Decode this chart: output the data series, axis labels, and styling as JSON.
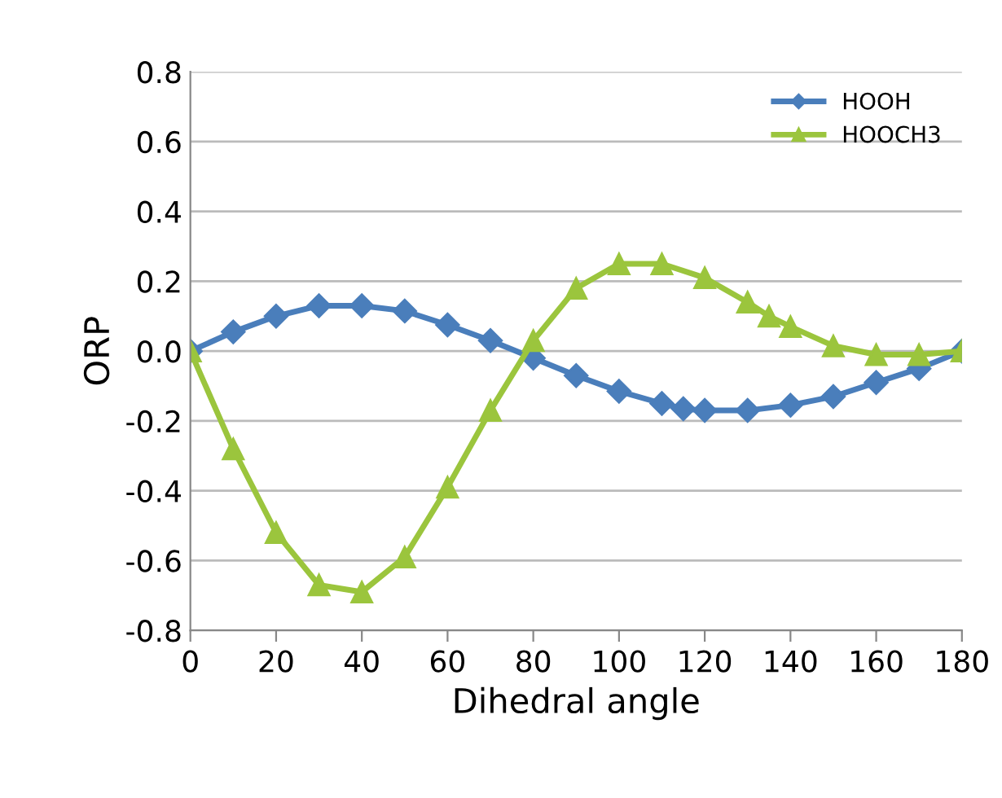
{
  "chart_data": {
    "type": "line",
    "xlabel": "Dihedral angle",
    "ylabel": "ORP",
    "xlim": [
      0,
      180
    ],
    "xticks": [
      0,
      20,
      40,
      60,
      80,
      100,
      120,
      140,
      160,
      180
    ],
    "ylim": [
      -0.8,
      0.8
    ],
    "yticks": [
      -0.8,
      -0.6,
      -0.4,
      -0.2,
      {
        "value": 0,
        "label": "0.0"
      },
      0.2,
      0.4,
      0.6,
      0.8
    ],
    "grid": "y",
    "legend": "top right",
    "series": [
      {
        "name": "HOOH",
        "color": "#4a7ebb",
        "marker": "diamond",
        "x": [
          0,
          10,
          20,
          30,
          40,
          50,
          60,
          70,
          80,
          90,
          100,
          110,
          115,
          120,
          130,
          140,
          150,
          160,
          170,
          180
        ],
        "values": [
          0,
          0.055,
          0.1,
          0.13,
          0.13,
          0.115,
          0.075,
          0.03,
          -0.02,
          -0.07,
          -0.115,
          -0.15,
          -0.165,
          -0.17,
          -0.17,
          -0.155,
          -0.13,
          -0.09,
          -0.05,
          0
        ]
      },
      {
        "name": "HOOCH3",
        "color": "#9bc53d",
        "marker": "triangle",
        "x": [
          0,
          10,
          20,
          30,
          40,
          50,
          60,
          70,
          80,
          90,
          100,
          110,
          120,
          130,
          135,
          140,
          150,
          160,
          170,
          180
        ],
        "values": [
          0,
          -0.28,
          -0.52,
          -0.67,
          -0.69,
          -0.59,
          -0.39,
          -0.17,
          0.03,
          0.18,
          0.25,
          0.25,
          0.21,
          0.14,
          0.1,
          0.07,
          0.015,
          -0.01,
          -0.01,
          0
        ]
      }
    ]
  }
}
